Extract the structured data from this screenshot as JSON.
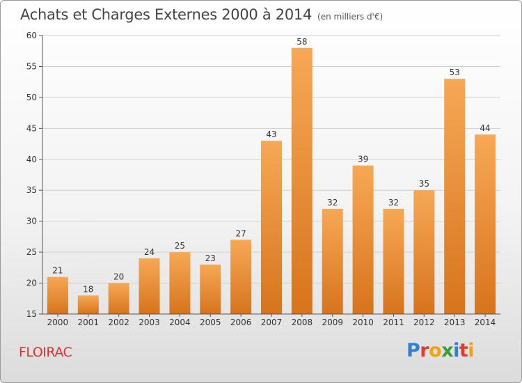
{
  "title": "Achats et Charges Externes 2000 à 2014",
  "subtitle": "(en milliers d'€)",
  "commune": "FLOIRAC",
  "brand": {
    "letters": [
      "P",
      "r",
      "o",
      "x",
      "i",
      "t",
      "i"
    ],
    "colors": [
      "#2f7fd6",
      "#e23b2e",
      "#f0a30a",
      "#3a9d3a",
      "#2f7fd6",
      "#e23b2e",
      "#f0a30a"
    ]
  },
  "colors": {
    "bar_top": "#f7a855",
    "bar_bottom": "#d7741d",
    "grid": "#cfcfcf",
    "axis": "#555555",
    "text": "#333333"
  },
  "chart_data": {
    "type": "bar",
    "categories": [
      "2000",
      "2001",
      "2002",
      "2003",
      "2004",
      "2005",
      "2006",
      "2007",
      "2008",
      "2009",
      "2010",
      "2011",
      "2012",
      "2013",
      "2014"
    ],
    "values": [
      21,
      18,
      20,
      24,
      25,
      23,
      27,
      43,
      58,
      32,
      39,
      32,
      35,
      53,
      44
    ],
    "ylim": [
      15,
      60
    ],
    "yticks": [
      15,
      20,
      25,
      30,
      35,
      40,
      45,
      50,
      55,
      60
    ],
    "grid": true,
    "data_labels": true
  }
}
